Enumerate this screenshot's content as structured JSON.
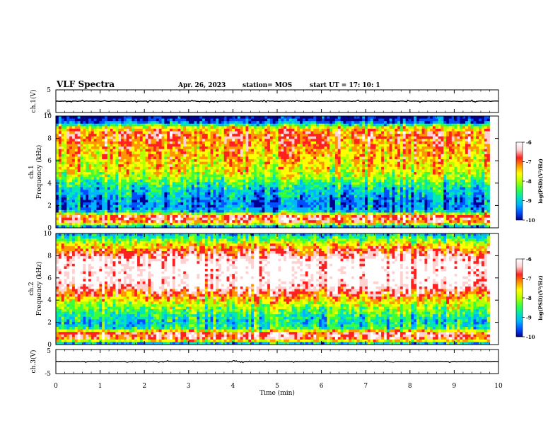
{
  "header": {
    "title": "VLF Spectra",
    "date": "Apr. 26, 2023",
    "station": "station= MOS",
    "start_ut": "start  UT =   17: 10: 1"
  },
  "chart_data": [
    {
      "type": "line",
      "id": "ch1-voltage",
      "ylabel": "ch.1(V)",
      "ylim": [
        -5,
        5
      ],
      "yticks": [
        "5",
        "-5"
      ],
      "xlim": [
        0,
        10
      ],
      "x": [
        0,
        10
      ],
      "values": [
        0,
        0
      ]
    },
    {
      "type": "heatmap",
      "id": "ch1-spectrogram",
      "ylabel_lines": [
        "ch.1",
        "Frequency (kHz)"
      ],
      "xlim": [
        0,
        9.8
      ],
      "ylim": [
        0,
        10
      ],
      "yticks": [
        "0",
        "2",
        "4",
        "6",
        "8",
        "10"
      ],
      "colorbar": {
        "label": "log(PSD)(V²/Hz)",
        "range": [
          -10,
          -6
        ],
        "ticks": [
          "-6",
          "-7",
          "-8",
          "-9",
          "-10"
        ],
        "colors": [
          "#000090",
          "#0050ff",
          "#00b4ff",
          "#00e6b4",
          "#3cff3c",
          "#b4ff00",
          "#ffff00",
          "#ff9600",
          "#ff2020",
          "#ffd0d0",
          "#ffffff"
        ]
      },
      "frequency_profile_khz": [
        0,
        0.5,
        1.0,
        1.5,
        2.0,
        2.5,
        3.0,
        3.5,
        4.0,
        4.5,
        5.0,
        5.5,
        6.0,
        6.5,
        7.0,
        7.5,
        8.0,
        8.5,
        9.0,
        9.5,
        10.0
      ],
      "log_psd_profile": [
        -9.5,
        -7.0,
        -6.8,
        -9.0,
        -9.3,
        -9.2,
        -9.0,
        -8.8,
        -8.5,
        -8.0,
        -7.8,
        -7.6,
        -7.5,
        -7.4,
        -7.3,
        -7.2,
        -7.0,
        -7.0,
        -7.8,
        -9.5,
        -10.0
      ]
    },
    {
      "type": "heatmap",
      "id": "ch2-spectrogram",
      "ylabel_lines": [
        "ch.2",
        "Frequency (kHz)"
      ],
      "xlim": [
        0,
        9.8
      ],
      "ylim": [
        0,
        10
      ],
      "yticks": [
        "0",
        "2",
        "4",
        "6",
        "8",
        "10"
      ],
      "colorbar": {
        "label": "log(PSD)(V²/Hz)",
        "range": [
          -10,
          -6
        ],
        "ticks": [
          "-6",
          "-7",
          "-8",
          "-9",
          "-10"
        ],
        "colors": [
          "#000090",
          "#0050ff",
          "#00b4ff",
          "#00e6b4",
          "#3cff3c",
          "#b4ff00",
          "#ffff00",
          "#ff9600",
          "#ff2020",
          "#ffd0d0",
          "#ffffff"
        ]
      },
      "frequency_profile_khz": [
        0,
        0.5,
        1.0,
        1.5,
        2.0,
        2.5,
        3.0,
        3.5,
        4.0,
        4.5,
        5.0,
        5.5,
        6.0,
        6.5,
        7.0,
        7.5,
        8.0,
        8.5,
        9.0,
        9.5,
        10.0
      ],
      "log_psd_profile": [
        -9.5,
        -6.8,
        -6.7,
        -8.6,
        -8.8,
        -8.6,
        -8.3,
        -8.0,
        -7.5,
        -7.0,
        -6.6,
        -6.2,
        -6.1,
        -6.1,
        -6.1,
        -6.2,
        -6.6,
        -7.0,
        -7.6,
        -8.3,
        -9.0
      ]
    },
    {
      "type": "line",
      "id": "ch3-voltage",
      "ylabel": "ch.3(V)",
      "ylim": [
        -5,
        5
      ],
      "yticks": [
        "5",
        "-5"
      ],
      "xlim": [
        0,
        10
      ],
      "x": [
        0,
        10
      ],
      "values": [
        0,
        0
      ]
    }
  ],
  "xaxis": {
    "label": "Time (min)",
    "range": [
      0,
      10
    ],
    "ticks": [
      "0",
      "1",
      "2",
      "3",
      "4",
      "5",
      "6",
      "7",
      "8",
      "9",
      "10"
    ]
  }
}
